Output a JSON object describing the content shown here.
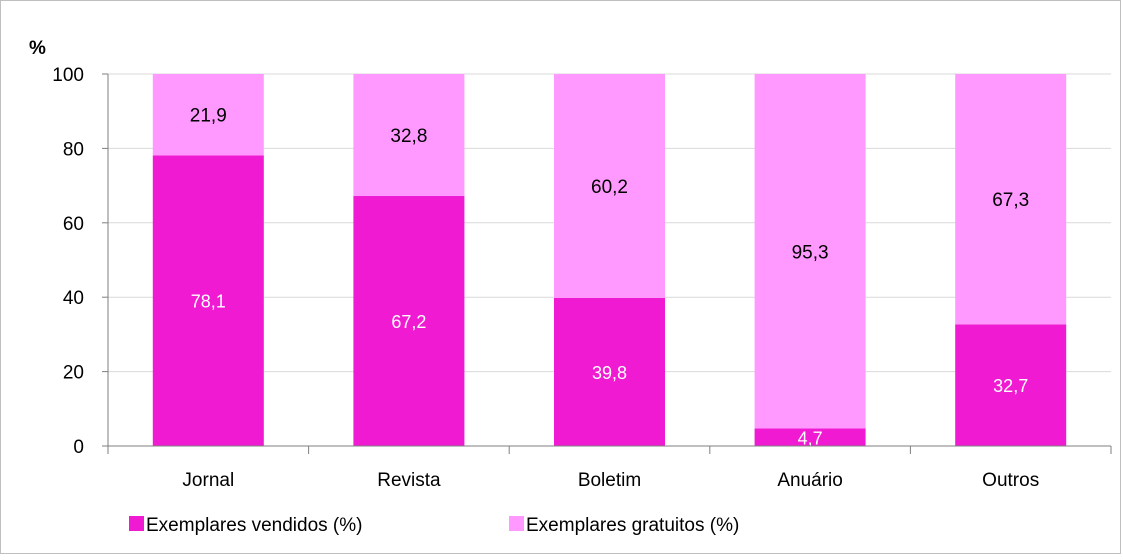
{
  "chart_data": {
    "type": "bar",
    "stacked": true,
    "ylabel": "%",
    "ylim": [
      0,
      100
    ],
    "yticks": [
      0,
      20,
      40,
      60,
      80,
      100
    ],
    "grid": true,
    "legend_position": "bottom",
    "categories": [
      "Jornal",
      "Revista",
      "Boletim",
      "Anuário",
      "Outros"
    ],
    "series": [
      {
        "name": "Exemplares vendidos (%)",
        "color": "#f01ad2",
        "values": [
          78.1,
          67.2,
          39.8,
          4.7,
          32.7
        ],
        "labels": [
          "78,1",
          "67,2",
          "39,8",
          "4,7",
          "32,7"
        ],
        "label_color": "#ffffff"
      },
      {
        "name": "Exemplares gratuitos (%)",
        "color": "#ff99ff",
        "values": [
          21.9,
          32.8,
          60.2,
          95.3,
          67.3
        ],
        "labels": [
          "21,9",
          "32,8",
          "60,2",
          "95,3",
          "67,3"
        ],
        "label_color": "#000000"
      }
    ]
  }
}
